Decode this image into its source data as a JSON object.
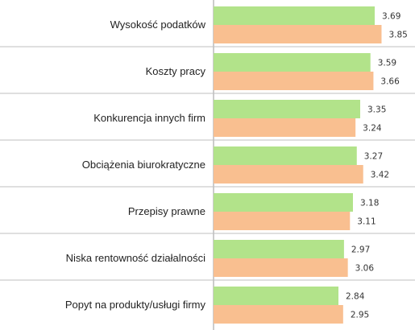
{
  "chart_data": {
    "type": "bar",
    "orientation": "horizontal",
    "categories": [
      "Wysokość podatków",
      "Koszty pracy",
      "Konkurencja innych firm",
      "Obciążenia biurokratyczne",
      "Przepisy prawne",
      "Niska rentowność działalności",
      "Popyt na produkty/usługi firmy"
    ],
    "series": [
      {
        "values": [
          3.69,
          3.59,
          3.35,
          3.27,
          3.18,
          2.97,
          2.84
        ],
        "color": "#b2e38a"
      },
      {
        "values": [
          3.85,
          3.66,
          3.24,
          3.42,
          3.11,
          3.06,
          2.95
        ],
        "color": "#f9bf90"
      }
    ],
    "value_labels": {
      "series0": [
        "3.69",
        "3.59",
        "3.35",
        "3.27",
        "3.18",
        "2.97",
        "2.84"
      ],
      "series1": [
        "3.85",
        "3.66",
        "3.24",
        "3.42",
        "3.11",
        "3.06",
        "2.95"
      ]
    },
    "xlim": [
      0,
      4.0
    ],
    "grid": false,
    "legend": "none",
    "colors": {
      "divider": "#bfbfbf",
      "axis": "#999999"
    }
  }
}
